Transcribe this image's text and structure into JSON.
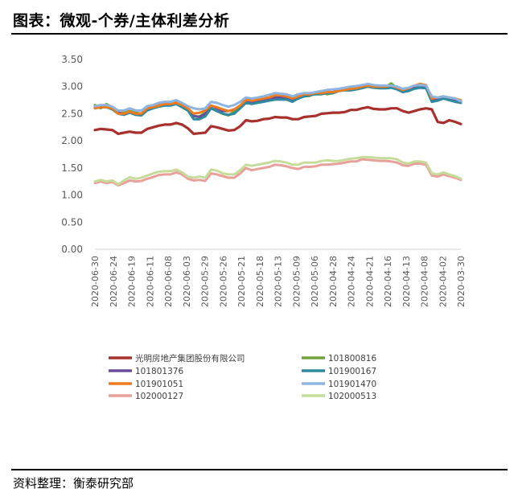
{
  "title": "图表：微观-个券/主体利差分析",
  "source": "资料整理：衡泰研究部",
  "chart_data": {
    "type": "line",
    "title": "",
    "xlabel": "",
    "ylabel": "",
    "ylim": [
      0,
      3.5
    ],
    "yticks": [
      "0.00",
      "0.50",
      "1.00",
      "1.50",
      "2.00",
      "2.50",
      "3.00",
      "3.50"
    ],
    "grid": false,
    "legend_position": "bottom",
    "x_tick_labels": [
      "2020-06-30",
      "2020-06-24",
      "2020-06-19",
      "2020-06-11",
      "2020-06-08",
      "2020-06-03",
      "2020-05-29",
      "2020-05-26",
      "2020-05-21",
      "2020-05-18",
      "2020-05-13",
      "2020-05-09",
      "2020-05-06",
      "2020-04-28",
      "2020-04-24",
      "2020-04-21",
      "2020-04-16",
      "2020-04-13",
      "2020-04-08",
      "2020-04-02",
      "2020-03-30"
    ],
    "series": [
      {
        "name": "光明房地产集团股份有限公司",
        "color": "#a8302d",
        "values": [
          2.2,
          2.22,
          2.21,
          2.2,
          2.13,
          2.15,
          2.17,
          2.15,
          2.15,
          2.22,
          2.25,
          2.28,
          2.3,
          2.3,
          2.33,
          2.3,
          2.23,
          2.13,
          2.14,
          2.15,
          2.27,
          2.25,
          2.22,
          2.19,
          2.2,
          2.27,
          2.38,
          2.36,
          2.37,
          2.4,
          2.41,
          2.44,
          2.43,
          2.43,
          2.4,
          2.4,
          2.44,
          2.45,
          2.46,
          2.5,
          2.51,
          2.52,
          2.52,
          2.53,
          2.57,
          2.57,
          2.6,
          2.62,
          2.59,
          2.58,
          2.58,
          2.6,
          2.6,
          2.55,
          2.52,
          2.55,
          2.58,
          2.6,
          2.58,
          2.35,
          2.33,
          2.38,
          2.35,
          2.31
        ]
      },
      {
        "name": "101800816",
        "color": "#70a33a",
        "values": [
          2.66,
          2.6,
          2.68,
          2.62,
          2.5,
          2.52,
          2.55,
          2.52,
          2.5,
          2.6,
          2.62,
          2.66,
          2.68,
          2.68,
          2.71,
          2.66,
          2.6,
          2.45,
          2.45,
          2.52,
          2.6,
          2.55,
          2.5,
          2.47,
          2.55,
          2.63,
          2.72,
          2.7,
          2.72,
          2.74,
          2.76,
          2.78,
          2.78,
          2.78,
          2.74,
          2.78,
          2.82,
          2.83,
          2.88,
          2.9,
          2.86,
          2.88,
          2.92,
          2.95,
          2.95,
          2.96,
          2.98,
          3.0,
          2.98,
          3.0,
          2.99,
          3.06,
          2.97,
          2.9,
          2.95,
          2.98,
          3.0,
          2.98,
          2.75,
          2.77,
          2.8,
          2.78,
          2.75,
          2.7
        ]
      },
      {
        "name": "101801376",
        "color": "#6a4c9c",
        "values": [
          2.62,
          2.64,
          2.62,
          2.6,
          2.52,
          2.5,
          2.53,
          2.5,
          2.5,
          2.58,
          2.62,
          2.64,
          2.67,
          2.66,
          2.7,
          2.65,
          2.58,
          2.46,
          2.44,
          2.5,
          2.65,
          2.6,
          2.55,
          2.55,
          2.58,
          2.65,
          2.74,
          2.72,
          2.74,
          2.76,
          2.78,
          2.8,
          2.8,
          2.8,
          2.76,
          2.8,
          2.84,
          2.85,
          2.88,
          2.9,
          2.9,
          2.9,
          2.94,
          2.96,
          2.96,
          2.98,
          3.0,
          3.02,
          3.0,
          2.98,
          2.98,
          3.0,
          2.98,
          2.94,
          2.96,
          3.0,
          3.01,
          2.99,
          2.76,
          2.78,
          2.8,
          2.78,
          2.76,
          2.72
        ]
      },
      {
        "name": "101900167",
        "color": "#2e8a9e",
        "values": [
          2.6,
          2.62,
          2.62,
          2.58,
          2.5,
          2.48,
          2.52,
          2.48,
          2.47,
          2.56,
          2.6,
          2.63,
          2.65,
          2.65,
          2.68,
          2.62,
          2.56,
          2.4,
          2.4,
          2.45,
          2.6,
          2.55,
          2.5,
          2.48,
          2.5,
          2.6,
          2.7,
          2.68,
          2.7,
          2.72,
          2.74,
          2.76,
          2.76,
          2.76,
          2.72,
          2.78,
          2.82,
          2.84,
          2.86,
          2.86,
          2.88,
          2.88,
          2.92,
          2.93,
          2.93,
          2.95,
          2.97,
          3.0,
          2.98,
          2.97,
          2.97,
          2.98,
          2.95,
          2.9,
          2.92,
          2.96,
          2.98,
          2.97,
          2.72,
          2.74,
          2.78,
          2.75,
          2.72,
          2.7
        ]
      },
      {
        "name": "101901051",
        "color": "#f07b1f",
        "values": [
          2.6,
          2.62,
          2.62,
          2.6,
          2.5,
          2.5,
          2.54,
          2.5,
          2.5,
          2.6,
          2.62,
          2.65,
          2.68,
          2.68,
          2.7,
          2.66,
          2.6,
          2.5,
          2.52,
          2.56,
          2.65,
          2.62,
          2.58,
          2.55,
          2.58,
          2.65,
          2.76,
          2.74,
          2.76,
          2.78,
          2.8,
          2.84,
          2.84,
          2.82,
          2.78,
          2.82,
          2.86,
          2.86,
          2.88,
          2.88,
          2.9,
          2.9,
          2.92,
          2.94,
          2.96,
          2.97,
          3.0,
          3.02,
          3.0,
          3.0,
          3.0,
          3.02,
          2.98,
          2.94,
          2.97,
          3.02,
          3.05,
          3.03,
          2.78,
          2.8,
          2.82,
          2.8,
          2.78,
          2.75
        ]
      },
      {
        "name": "101901470",
        "color": "#8eb4e0",
        "values": [
          2.64,
          2.66,
          2.66,
          2.63,
          2.56,
          2.56,
          2.6,
          2.56,
          2.56,
          2.64,
          2.66,
          2.7,
          2.72,
          2.72,
          2.75,
          2.7,
          2.64,
          2.6,
          2.58,
          2.6,
          2.72,
          2.7,
          2.66,
          2.63,
          2.66,
          2.72,
          2.8,
          2.78,
          2.8,
          2.82,
          2.85,
          2.88,
          2.87,
          2.86,
          2.82,
          2.86,
          2.88,
          2.88,
          2.9,
          2.92,
          2.94,
          2.95,
          2.96,
          2.98,
          3.0,
          3.01,
          3.03,
          3.05,
          3.03,
          3.02,
          3.02,
          3.02,
          3.0,
          2.96,
          2.98,
          3.02,
          3.03,
          3.02,
          2.82,
          2.8,
          2.82,
          2.8,
          2.78,
          2.73
        ]
      },
      {
        "name": "102000127",
        "color": "#e8a09a",
        "values": [
          1.22,
          1.25,
          1.22,
          1.24,
          1.18,
          1.22,
          1.27,
          1.25,
          1.26,
          1.3,
          1.33,
          1.37,
          1.38,
          1.38,
          1.42,
          1.38,
          1.3,
          1.27,
          1.28,
          1.26,
          1.4,
          1.38,
          1.35,
          1.32,
          1.32,
          1.4,
          1.5,
          1.46,
          1.48,
          1.5,
          1.52,
          1.56,
          1.55,
          1.53,
          1.5,
          1.48,
          1.52,
          1.52,
          1.53,
          1.56,
          1.56,
          1.57,
          1.58,
          1.6,
          1.62,
          1.62,
          1.66,
          1.65,
          1.64,
          1.63,
          1.63,
          1.62,
          1.6,
          1.55,
          1.54,
          1.58,
          1.58,
          1.56,
          1.36,
          1.34,
          1.38,
          1.35,
          1.32,
          1.28
        ]
      },
      {
        "name": "102000513",
        "color": "#c6dc9a",
        "values": [
          1.25,
          1.28,
          1.25,
          1.27,
          1.2,
          1.27,
          1.33,
          1.3,
          1.32,
          1.36,
          1.4,
          1.43,
          1.44,
          1.44,
          1.47,
          1.42,
          1.34,
          1.32,
          1.34,
          1.32,
          1.47,
          1.45,
          1.4,
          1.38,
          1.38,
          1.46,
          1.56,
          1.54,
          1.56,
          1.58,
          1.6,
          1.63,
          1.62,
          1.6,
          1.56,
          1.56,
          1.6,
          1.6,
          1.6,
          1.63,
          1.64,
          1.63,
          1.63,
          1.65,
          1.67,
          1.68,
          1.7,
          1.7,
          1.69,
          1.68,
          1.68,
          1.68,
          1.66,
          1.6,
          1.58,
          1.62,
          1.62,
          1.6,
          1.4,
          1.38,
          1.42,
          1.38,
          1.35,
          1.3
        ]
      }
    ]
  }
}
